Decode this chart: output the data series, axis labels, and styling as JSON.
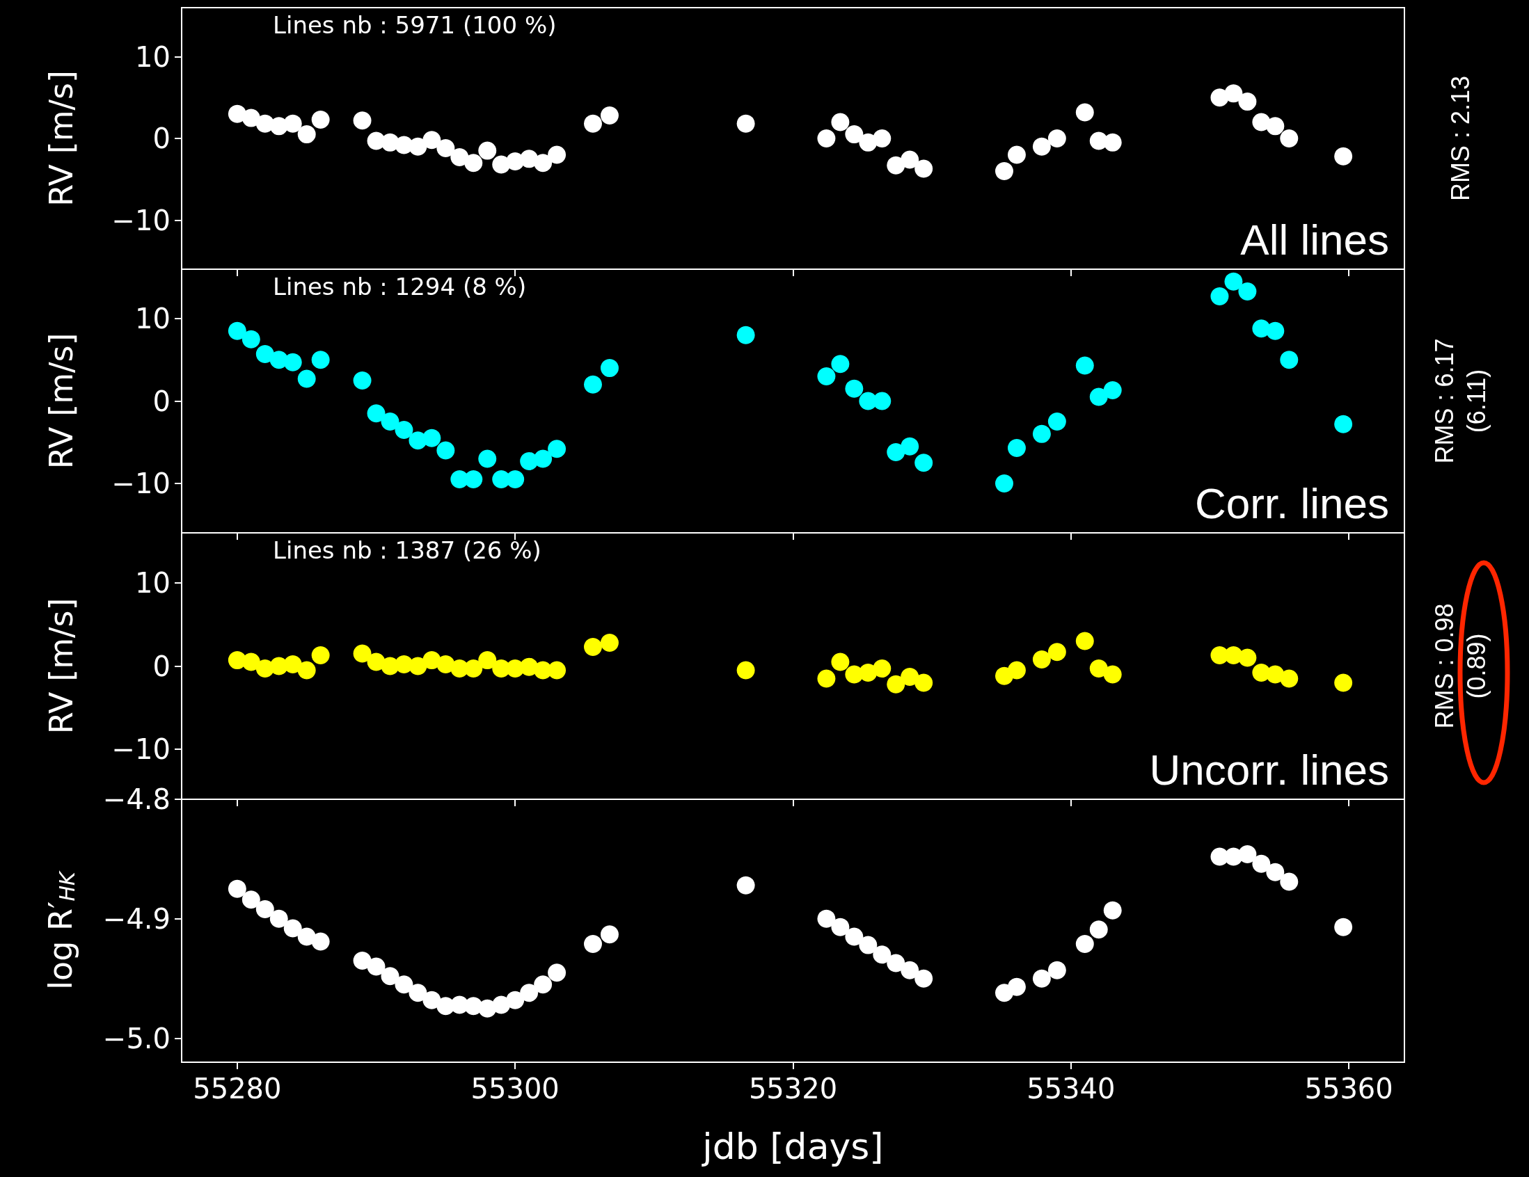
{
  "chart_data": [
    {
      "type": "scatter",
      "ylabel": "RV [m/s]",
      "color": "#ffffff",
      "marker": "circle",
      "tick_labels": "y",
      "annotations": [
        "Lines nb : 5971 (100 %)",
        "All lines",
        "RMS : 2.13"
      ],
      "xlim": [
        55276,
        55364
      ],
      "xticks": [
        55280,
        55300,
        55320,
        55340,
        55360
      ],
      "ylim": [
        -16,
        16
      ],
      "yticks": [
        {
          "value": -10,
          "label": "−10"
        },
        {
          "value": 0,
          "label": "0"
        },
        {
          "value": 10,
          "label": "10"
        }
      ],
      "x": [
        55280,
        55281,
        55282,
        55283,
        55284,
        55285,
        55286,
        55289,
        55290,
        55291,
        55292,
        55293,
        55294,
        55295,
        55296,
        55297,
        55298,
        55299,
        55300,
        55301,
        55302,
        55303,
        55305.6,
        55306.8,
        55316.6,
        55322.4,
        55323.4,
        55324.4,
        55325.4,
        55326.4,
        55327.4,
        55328.4,
        55329.4,
        55335.2,
        55336.1,
        55337.9,
        55339,
        55341,
        55342,
        55343,
        55350.7,
        55351.7,
        55352.7,
        55353.7,
        55354.7,
        55355.7,
        55359.6
      ],
      "values": [
        3.0,
        2.5,
        1.8,
        1.5,
        1.8,
        0.5,
        2.3,
        2.2,
        -0.3,
        -0.5,
        -0.8,
        -1.0,
        -0.2,
        -1.2,
        -2.3,
        -3.0,
        -1.5,
        -3.2,
        -2.8,
        -2.5,
        -3.0,
        -2.0,
        1.8,
        2.8,
        1.8,
        0.0,
        2.0,
        0.5,
        -0.5,
        0.0,
        -3.3,
        -2.6,
        -3.7,
        -4.0,
        -2.0,
        -1.0,
        0.0,
        3.2,
        -0.3,
        -0.5,
        5.0,
        5.5,
        4.5,
        2.0,
        1.5,
        0.0,
        -2.2
      ]
    },
    {
      "type": "scatter",
      "ylabel": "RV [m/s]",
      "color": "#00ffff",
      "marker": "circle",
      "tick_labels": "y",
      "annotations": [
        "Lines nb : 1294 (8 %)",
        "Corr. lines",
        "RMS : 6.17\n(6.11)"
      ],
      "xlim": [
        55276,
        55364
      ],
      "xticks": [
        55280,
        55300,
        55320,
        55340,
        55360
      ],
      "ylim": [
        -16,
        16
      ],
      "yticks": [
        {
          "value": -10,
          "label": "−10"
        },
        {
          "value": 0,
          "label": "0"
        },
        {
          "value": 10,
          "label": "10"
        }
      ],
      "x": [
        55280,
        55281,
        55282,
        55283,
        55284,
        55285,
        55286,
        55289,
        55290,
        55291,
        55292,
        55293,
        55294,
        55295,
        55296,
        55297,
        55298,
        55299,
        55300,
        55301,
        55302,
        55303,
        55305.6,
        55306.8,
        55316.6,
        55322.4,
        55323.4,
        55324.4,
        55325.4,
        55326.4,
        55327.4,
        55328.4,
        55329.4,
        55335.2,
        55336.1,
        55337.9,
        55339,
        55341,
        55342,
        55343,
        55350.7,
        55351.7,
        55352.7,
        55353.7,
        55354.7,
        55355.7,
        55359.6
      ],
      "values": [
        8.5,
        7.5,
        5.7,
        5.0,
        4.7,
        2.7,
        5.0,
        2.5,
        -1.5,
        -2.5,
        -3.5,
        -4.8,
        -4.5,
        -6.0,
        -9.5,
        -9.5,
        -7.0,
        -9.5,
        -9.5,
        -7.3,
        -7.0,
        -5.8,
        2.0,
        4.0,
        8.0,
        3.0,
        4.5,
        1.5,
        0.0,
        0.0,
        -6.2,
        -5.5,
        -7.5,
        -10.0,
        -5.7,
        -4.0,
        -2.5,
        4.3,
        0.5,
        1.3,
        12.7,
        14.5,
        13.3,
        8.8,
        8.5,
        5.0,
        -2.8
      ]
    },
    {
      "type": "scatter",
      "ylabel": "RV [m/s]",
      "color": "#ffff00",
      "marker": "circle",
      "tick_labels": "y",
      "annotations": [
        "Lines nb : 1387 (26 %)",
        "Uncorr. lines",
        "RMS : 0.98\n(0.89)"
      ],
      "xlim": [
        55276,
        55364
      ],
      "xticks": [
        55280,
        55300,
        55320,
        55340,
        55360
      ],
      "ylim": [
        -16,
        16
      ],
      "yticks": [
        {
          "value": -10,
          "label": "−10"
        },
        {
          "value": 0,
          "label": "0"
        },
        {
          "value": 10,
          "label": "10"
        }
      ],
      "x": [
        55280,
        55281,
        55282,
        55283,
        55284,
        55285,
        55286,
        55289,
        55290,
        55291,
        55292,
        55293,
        55294,
        55295,
        55296,
        55297,
        55298,
        55299,
        55300,
        55301,
        55302,
        55303,
        55305.6,
        55306.8,
        55316.6,
        55322.4,
        55323.4,
        55324.4,
        55325.4,
        55326.4,
        55327.4,
        55328.4,
        55329.4,
        55335.2,
        55336.1,
        55337.9,
        55339,
        55341,
        55342,
        55343,
        55350.7,
        55351.7,
        55352.7,
        55353.7,
        55354.7,
        55355.7,
        55359.6
      ],
      "values": [
        0.7,
        0.5,
        -0.3,
        0.0,
        0.2,
        -0.5,
        1.3,
        1.5,
        0.5,
        0.0,
        0.2,
        0.0,
        0.7,
        0.2,
        -0.3,
        -0.3,
        0.7,
        -0.3,
        -0.3,
        -0.1,
        -0.5,
        -0.5,
        2.3,
        2.8,
        -0.5,
        -1.5,
        0.5,
        -1.0,
        -0.8,
        -0.3,
        -2.2,
        -1.3,
        -2.0,
        -1.2,
        -0.5,
        0.8,
        1.7,
        3.0,
        -0.3,
        -1.0,
        1.3,
        1.3,
        1.0,
        -0.8,
        -1.0,
        -1.5,
        -2.0
      ]
    },
    {
      "type": "scatter",
      "ylabel": "log R′$_{HK}$",
      "xlabel": "jdb [days]",
      "color": "#ffffff",
      "marker": "circle",
      "xlim": [
        55276,
        55364
      ],
      "xticks": [
        55280,
        55300,
        55320,
        55340,
        55360
      ],
      "ylim": [
        -5.02,
        -4.8
      ],
      "yticks": [
        {
          "value": -5.0,
          "label": "−5.0"
        },
        {
          "value": -4.9,
          "label": "−4.9"
        },
        {
          "value": -4.8,
          "label": "−4.8"
        }
      ],
      "x": [
        55280,
        55281,
        55282,
        55283,
        55284,
        55285,
        55286,
        55289,
        55290,
        55291,
        55292,
        55293,
        55294,
        55295,
        55296,
        55297,
        55298,
        55299,
        55300,
        55301,
        55302,
        55303,
        55305.6,
        55306.8,
        55316.6,
        55322.4,
        55323.4,
        55324.4,
        55325.4,
        55326.4,
        55327.4,
        55328.4,
        55329.4,
        55335.2,
        55336.1,
        55337.9,
        55339,
        55341,
        55342,
        55343,
        55350.7,
        55351.7,
        55352.7,
        55353.7,
        55354.7,
        55355.7,
        55359.6
      ],
      "values": [
        -4.875,
        -4.884,
        -4.892,
        -4.9,
        -4.908,
        -4.915,
        -4.919,
        -4.935,
        -4.94,
        -4.948,
        -4.955,
        -4.962,
        -4.968,
        -4.973,
        -4.972,
        -4.973,
        -4.975,
        -4.972,
        -4.968,
        -4.962,
        -4.955,
        -4.945,
        -4.921,
        -4.913,
        -4.872,
        -4.9,
        -4.907,
        -4.915,
        -4.922,
        -4.93,
        -4.937,
        -4.943,
        -4.95,
        -4.962,
        -4.957,
        -4.95,
        -4.943,
        -4.921,
        -4.909,
        -4.893,
        -4.848,
        -4.848,
        -4.846,
        -4.854,
        -4.861,
        -4.869,
        -4.907
      ]
    }
  ]
}
